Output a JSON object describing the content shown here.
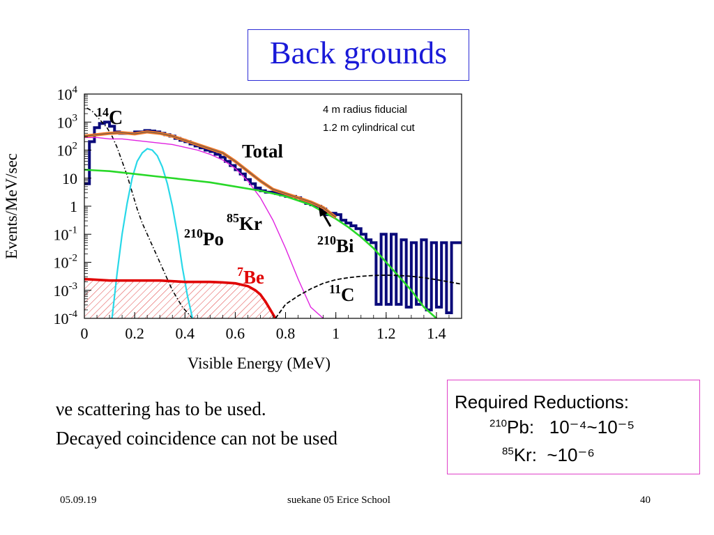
{
  "title": "Back grounds",
  "chart_data": {
    "type": "line",
    "xlabel": "Visible Energy (MeV)",
    "ylabel": "Events/MeV/sec",
    "xlim": [
      0,
      1.5
    ],
    "ylim_log10": [
      -4,
      4
    ],
    "yscale": "log",
    "x_ticks": [
      "0",
      "0.2",
      "0.4",
      "0.6",
      "0.8",
      "1",
      "1.2",
      "1.4"
    ],
    "y_ticks": [
      {
        "base": "10",
        "exp": "4"
      },
      {
        "base": "10",
        "exp": "3"
      },
      {
        "base": "10",
        "exp": "2"
      },
      {
        "base": "10",
        "exp": ""
      },
      {
        "base": "1",
        "exp": ""
      },
      {
        "base": "10",
        "exp": "-1"
      },
      {
        "base": "10",
        "exp": "-2"
      },
      {
        "base": "10",
        "exp": "-3"
      },
      {
        "base": "10",
        "exp": "-4"
      }
    ],
    "cut_note_1": "4 m radius fiducial",
    "cut_note_2": "1.2 m cylindrical cut",
    "series_labels": {
      "c14_sup": "14",
      "c14": "C",
      "total": "Total",
      "kr85_sup": "85",
      "kr85": "Kr",
      "po210_sup": "210",
      "po210": "Po",
      "bi210_sup": "210",
      "bi210": "Bi",
      "be7_sup": "7",
      "be7": "Be",
      "c11_sup": "11",
      "c11": "C"
    },
    "series": [
      {
        "key": "c14",
        "color": "#000000",
        "x": [
          0.01,
          0.03,
          0.05,
          0.07,
          0.09,
          0.11,
          0.13,
          0.15,
          0.17,
          0.19,
          0.21,
          0.23,
          0.25,
          0.27,
          0.29,
          0.31,
          0.33,
          0.35,
          0.37,
          0.39,
          0.41,
          0.43,
          0.45
        ],
        "y": [
          3.5,
          3.4,
          3.2,
          3.0,
          2.8,
          2.5,
          2.1,
          1.6,
          1.1,
          0.5,
          -0.1,
          -0.6,
          -1.0,
          -1.4,
          -1.8,
          -2.2,
          -2.6,
          -3.0,
          -3.3,
          -3.6,
          -3.8,
          -4.0,
          -4.2
        ]
      },
      {
        "key": "po210",
        "color": "#28d8e8",
        "x": [
          0.11,
          0.13,
          0.15,
          0.17,
          0.19,
          0.21,
          0.23,
          0.25,
          0.27,
          0.29,
          0.31,
          0.33,
          0.35,
          0.37,
          0.39,
          0.41,
          0.43
        ],
        "y": [
          -4.0,
          -2.4,
          -1.0,
          0.1,
          1.0,
          1.6,
          1.9,
          2.05,
          2.0,
          1.8,
          1.4,
          0.8,
          0.0,
          -1.0,
          -2.2,
          -3.2,
          -4.0
        ]
      },
      {
        "key": "kr85",
        "color": "#e020e0",
        "x": [
          0.0,
          0.05,
          0.1,
          0.15,
          0.2,
          0.25,
          0.3,
          0.35,
          0.4,
          0.45,
          0.5,
          0.55,
          0.6,
          0.65,
          0.7,
          0.75,
          0.8,
          0.85,
          0.9,
          0.95
        ],
        "y": [
          2.45,
          2.45,
          2.4,
          2.4,
          2.35,
          2.3,
          2.25,
          2.2,
          2.1,
          2.0,
          1.85,
          1.65,
          1.35,
          0.9,
          0.3,
          -0.5,
          -1.5,
          -2.6,
          -3.6,
          -4.0
        ]
      },
      {
        "key": "bi210",
        "color": "#28d828",
        "x": [
          0.0,
          0.1,
          0.2,
          0.3,
          0.4,
          0.5,
          0.6,
          0.7,
          0.8,
          0.9,
          1.0,
          1.05,
          1.1,
          1.15,
          1.2,
          1.25,
          1.3,
          1.35,
          1.4
        ],
        "y": [
          1.3,
          1.25,
          1.15,
          1.05,
          0.95,
          0.85,
          0.7,
          0.55,
          0.35,
          0.05,
          -0.45,
          -0.75,
          -1.1,
          -1.5,
          -2.0,
          -2.5,
          -3.0,
          -3.6,
          -4.0
        ]
      },
      {
        "key": "be7",
        "color": "#e00000",
        "x": [
          0.0,
          0.1,
          0.2,
          0.3,
          0.4,
          0.5,
          0.55,
          0.6,
          0.65,
          0.68,
          0.7,
          0.72,
          0.74,
          0.76
        ],
        "y": [
          -2.6,
          -2.65,
          -2.65,
          -2.65,
          -2.7,
          -2.7,
          -2.72,
          -2.75,
          -2.85,
          -3.0,
          -3.15,
          -3.4,
          -3.7,
          -4.0
        ]
      },
      {
        "key": "c11",
        "color": "#000000",
        "x": [
          0.76,
          0.8,
          0.85,
          0.9,
          0.95,
          1.0,
          1.05,
          1.1,
          1.15,
          1.2,
          1.25,
          1.3,
          1.35,
          1.4,
          1.45,
          1.5
        ],
        "y": [
          -4.0,
          -3.5,
          -3.2,
          -2.95,
          -2.75,
          -2.62,
          -2.55,
          -2.5,
          -2.47,
          -2.46,
          -2.47,
          -2.5,
          -2.55,
          -2.62,
          -2.7,
          -2.78
        ]
      },
      {
        "key": "total",
        "color": "#f07828",
        "x": [
          0.0,
          0.05,
          0.1,
          0.15,
          0.2,
          0.25,
          0.3,
          0.35,
          0.4,
          0.45,
          0.5,
          0.55,
          0.6,
          0.65,
          0.7,
          0.75,
          0.8,
          0.85,
          0.9,
          0.95,
          1.0
        ],
        "y": [
          2.5,
          2.55,
          2.6,
          2.62,
          2.58,
          2.65,
          2.6,
          2.5,
          2.35,
          2.2,
          2.05,
          1.9,
          1.6,
          1.25,
          0.9,
          0.6,
          0.45,
          0.3,
          0.15,
          -0.05,
          -0.4
        ]
      },
      {
        "key": "data",
        "color": "#0a0a7a",
        "x": [
          0.01,
          0.03,
          0.05,
          0.07,
          0.09,
          0.11,
          0.13,
          0.15,
          0.17,
          0.19,
          0.21,
          0.23,
          0.25,
          0.27,
          0.29,
          0.31,
          0.33,
          0.35,
          0.37,
          0.39,
          0.41,
          0.43,
          0.45,
          0.47,
          0.49,
          0.51,
          0.53,
          0.55,
          0.57,
          0.59,
          0.61,
          0.63,
          0.65,
          0.67,
          0.69,
          0.71,
          0.73,
          0.75,
          0.77,
          0.79,
          0.81,
          0.83,
          0.85,
          0.87,
          0.89,
          0.91,
          0.93,
          0.95,
          0.97,
          0.99,
          1.01,
          1.03,
          1.05,
          1.07,
          1.09,
          1.11,
          1.13,
          1.15,
          1.17,
          1.19,
          1.21,
          1.23,
          1.25,
          1.27,
          1.29,
          1.31,
          1.33,
          1.35,
          1.37,
          1.39,
          1.41,
          1.43,
          1.45,
          1.47,
          1.49
        ],
        "y": [
          0.8,
          2.3,
          2.8,
          2.95,
          3.0,
          2.85,
          2.65,
          2.6,
          2.6,
          2.6,
          2.65,
          2.65,
          2.7,
          2.68,
          2.65,
          2.6,
          2.55,
          2.5,
          2.42,
          2.35,
          2.3,
          2.22,
          2.15,
          2.08,
          2.0,
          1.95,
          1.85,
          1.75,
          1.6,
          1.45,
          1.3,
          1.15,
          0.95,
          0.8,
          0.65,
          0.55,
          0.5,
          0.5,
          0.45,
          0.4,
          0.35,
          0.35,
          0.3,
          0.2,
          0.1,
          0.05,
          0.0,
          -0.1,
          -0.3,
          -0.25,
          -0.3,
          -0.5,
          -0.6,
          -0.7,
          -0.8,
          -1.0,
          -1.2,
          -1.3,
          -3.5,
          -1.0,
          -3.5,
          -1.0,
          -3.5,
          -1.2,
          -3.6,
          -1.3,
          -3.5,
          -1.2,
          -3.7,
          -1.3,
          -3.6,
          -1.3,
          -3.8,
          -1.3,
          -1.3
        ]
      }
    ]
  },
  "notes": {
    "line1": "νe scattering has to be used.",
    "line2": "Decayed coincidence can not be used"
  },
  "reductions": {
    "heading": "Required Reductions:",
    "pb_sup": "210",
    "pb_label": "Pb:",
    "pb_value": "10⁻⁴~10⁻⁵",
    "kr_sup": "85",
    "kr_label": "Kr:",
    "kr_value": "~10⁻⁶"
  },
  "footer": {
    "date": "05.09.19",
    "center": "suekane 05 Erice School",
    "page": "40"
  }
}
